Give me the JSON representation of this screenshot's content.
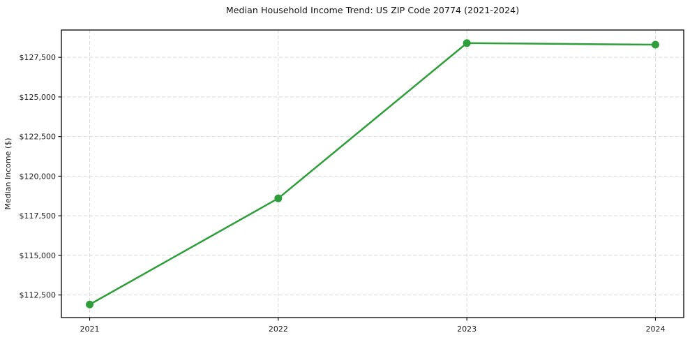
{
  "chart_data": {
    "type": "line",
    "title": "Median Household Income Trend: US ZIP Code 20774 (2021-2024)",
    "xlabel": "",
    "ylabel": "Median Income ($)",
    "x": [
      2021,
      2022,
      2023,
      2024
    ],
    "xtick_labels": [
      "2021",
      "2022",
      "2023",
      "2024"
    ],
    "series": [
      {
        "name": "Median Income",
        "values": [
          111900,
          118600,
          128400,
          128300
        ],
        "color": "#2d9e3a",
        "marker": "circle"
      }
    ],
    "yticks": [
      112500,
      115000,
      117500,
      120000,
      122500,
      125000,
      127500
    ],
    "ytick_labels": [
      "$112,500",
      "$115,000",
      "$117,500",
      "$120,000",
      "$122,500",
      "$125,000",
      "$127,500"
    ],
    "xlim": [
      2020.85,
      2024.15
    ],
    "ylim": [
      111075,
      129225
    ],
    "grid": true,
    "grid_color": "#d9d9d9",
    "grid_style": "dashed",
    "axis_color": "#000000",
    "tick_label_color": "#1a1a1a",
    "background_color": "#ffffff",
    "legend": "none"
  }
}
